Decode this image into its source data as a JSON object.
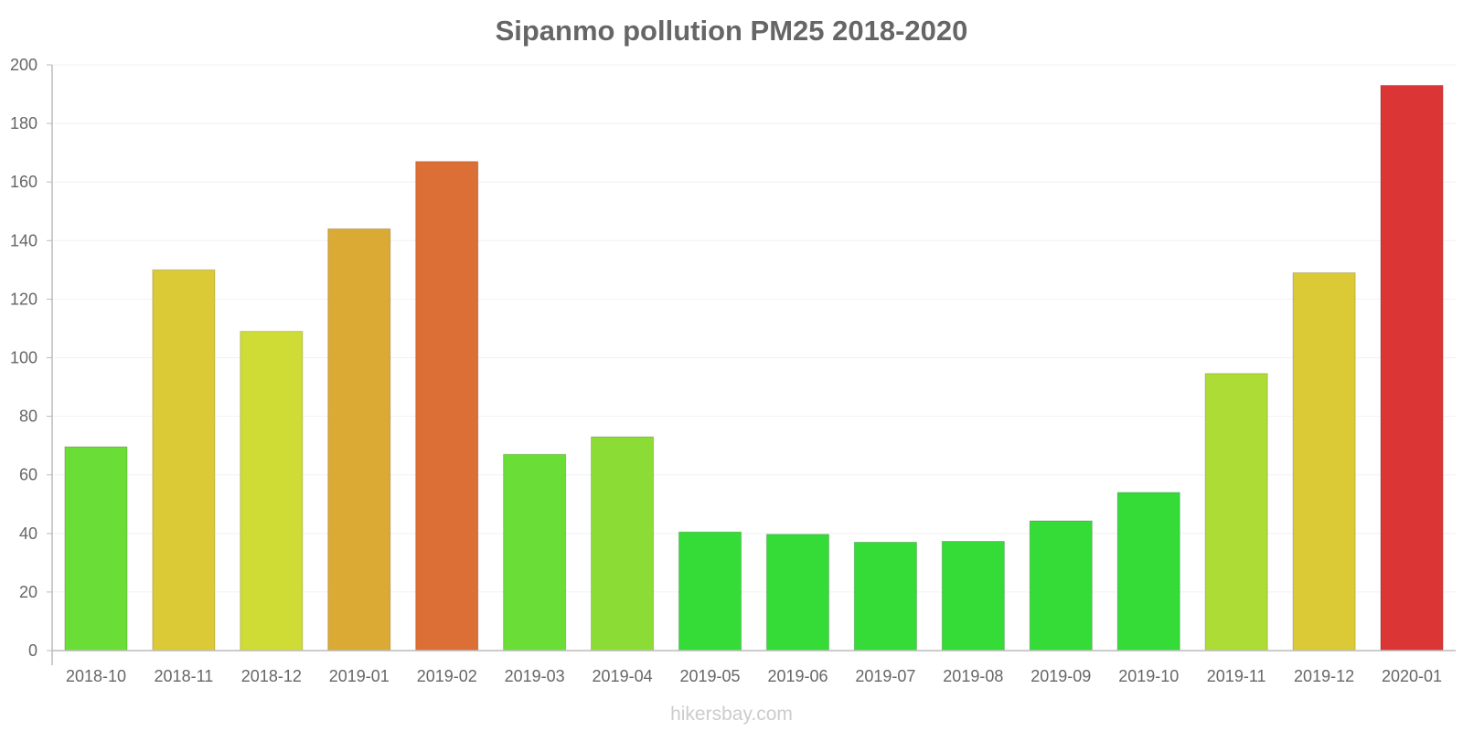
{
  "chart_data": {
    "type": "bar",
    "title": "Sipanmo pollution PM25 2018-2020",
    "categories": [
      "2018-10",
      "2018-11",
      "2018-12",
      "2019-01",
      "2019-02",
      "2019-03",
      "2019-04",
      "2019-05",
      "2019-06",
      "2019-07",
      "2019-08",
      "2019-09",
      "2019-10",
      "2019-11",
      "2019-12",
      "2020-01"
    ],
    "values": [
      69.6,
      130,
      109,
      144,
      167,
      67,
      73,
      40.5,
      39.7,
      37,
      37.3,
      44.3,
      54,
      94.6,
      129,
      193
    ],
    "colors": [
      "#6ade36",
      "#dbca35",
      "#cedc35",
      "#dbaa35",
      "#dc6f35",
      "#6ade36",
      "#8bdd36",
      "#35dc38",
      "#35dc38",
      "#35dc38",
      "#35dc38",
      "#35dc38",
      "#35dc38",
      "#acdc35",
      "#dbca35",
      "#db3535"
    ],
    "xlabel": "",
    "ylabel": "",
    "ylim": [
      0,
      200
    ],
    "yticks": [
      0,
      20,
      40,
      60,
      80,
      100,
      120,
      140,
      160,
      180,
      200
    ],
    "grid": true,
    "legend": "none"
  },
  "watermark": "hikersbay.com"
}
